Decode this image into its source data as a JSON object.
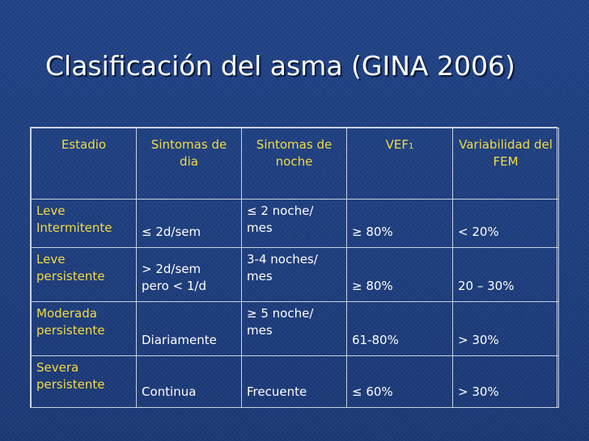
{
  "title": "Clasificación del asma (GINA 2006)",
  "table": {
    "headers": [
      "Estadio",
      "Sintomas de dia",
      "Sintomas de noche",
      "VEF",
      "Variabilidad del FEM"
    ],
    "header_vef_sub": "1",
    "rows": [
      {
        "stage": "Leve Intermitente",
        "dia": "≤ 2d/sem",
        "noche": "≤ 2 noche/ mes",
        "vef": "≥ 80%",
        "fem": "< 20%"
      },
      {
        "stage": "Leve persistente",
        "dia_1": "> 2d/sem",
        "dia_2": "pero < 1/d",
        "noche": "3-4 noches/ mes",
        "vef": "≥ 80%",
        "fem": "20 – 30%"
      },
      {
        "stage": "Moderada persistente",
        "dia": "Diariamente",
        "noche": "≥ 5 noche/ mes",
        "vef": "61-80%",
        "fem": "> 30%"
      },
      {
        "stage": "Severa persistente",
        "dia": "Continua",
        "noche": "Frecuente",
        "vef": "≤ 60%",
        "fem": "> 30%"
      }
    ]
  },
  "colors": {
    "background": "#1c3c7c",
    "header_text": "#f3dc45",
    "body_text": "#ffffff",
    "grid": "#c9d3e6"
  }
}
